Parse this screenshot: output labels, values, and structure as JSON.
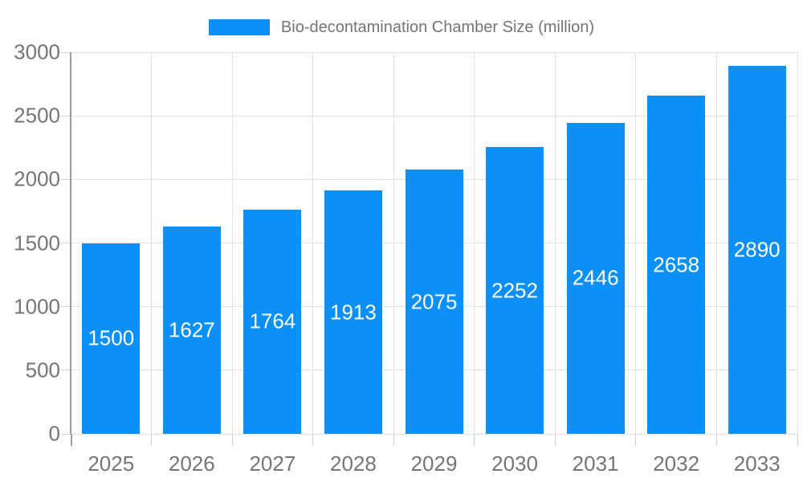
{
  "legend": {
    "label": "Bio-decontamination Chamber Size (million)"
  },
  "colors": {
    "bar": "#0a90f8",
    "bar_label": "#ffffff",
    "tick_text": "#757575",
    "legend_text": "#757575",
    "gridline": "#e2e2e2",
    "axis_line": "#9e9e9e",
    "background": "#ffffff"
  },
  "chart_data": {
    "type": "bar",
    "title": "Bio-decontamination Chamber Size (million)",
    "categories": [
      "2025",
      "2026",
      "2027",
      "2028",
      "2029",
      "2030",
      "2031",
      "2032",
      "2033"
    ],
    "values": [
      1500,
      1627,
      1764,
      1913,
      2075,
      2252,
      2446,
      2658,
      2890
    ],
    "xlabel": "",
    "ylabel": "",
    "ylim": [
      0,
      3000
    ],
    "yticks": [
      0,
      500,
      1000,
      1500,
      2000,
      2500,
      3000
    ],
    "grid": true,
    "legend_position": "top-center",
    "bar_labels_shown": true
  }
}
